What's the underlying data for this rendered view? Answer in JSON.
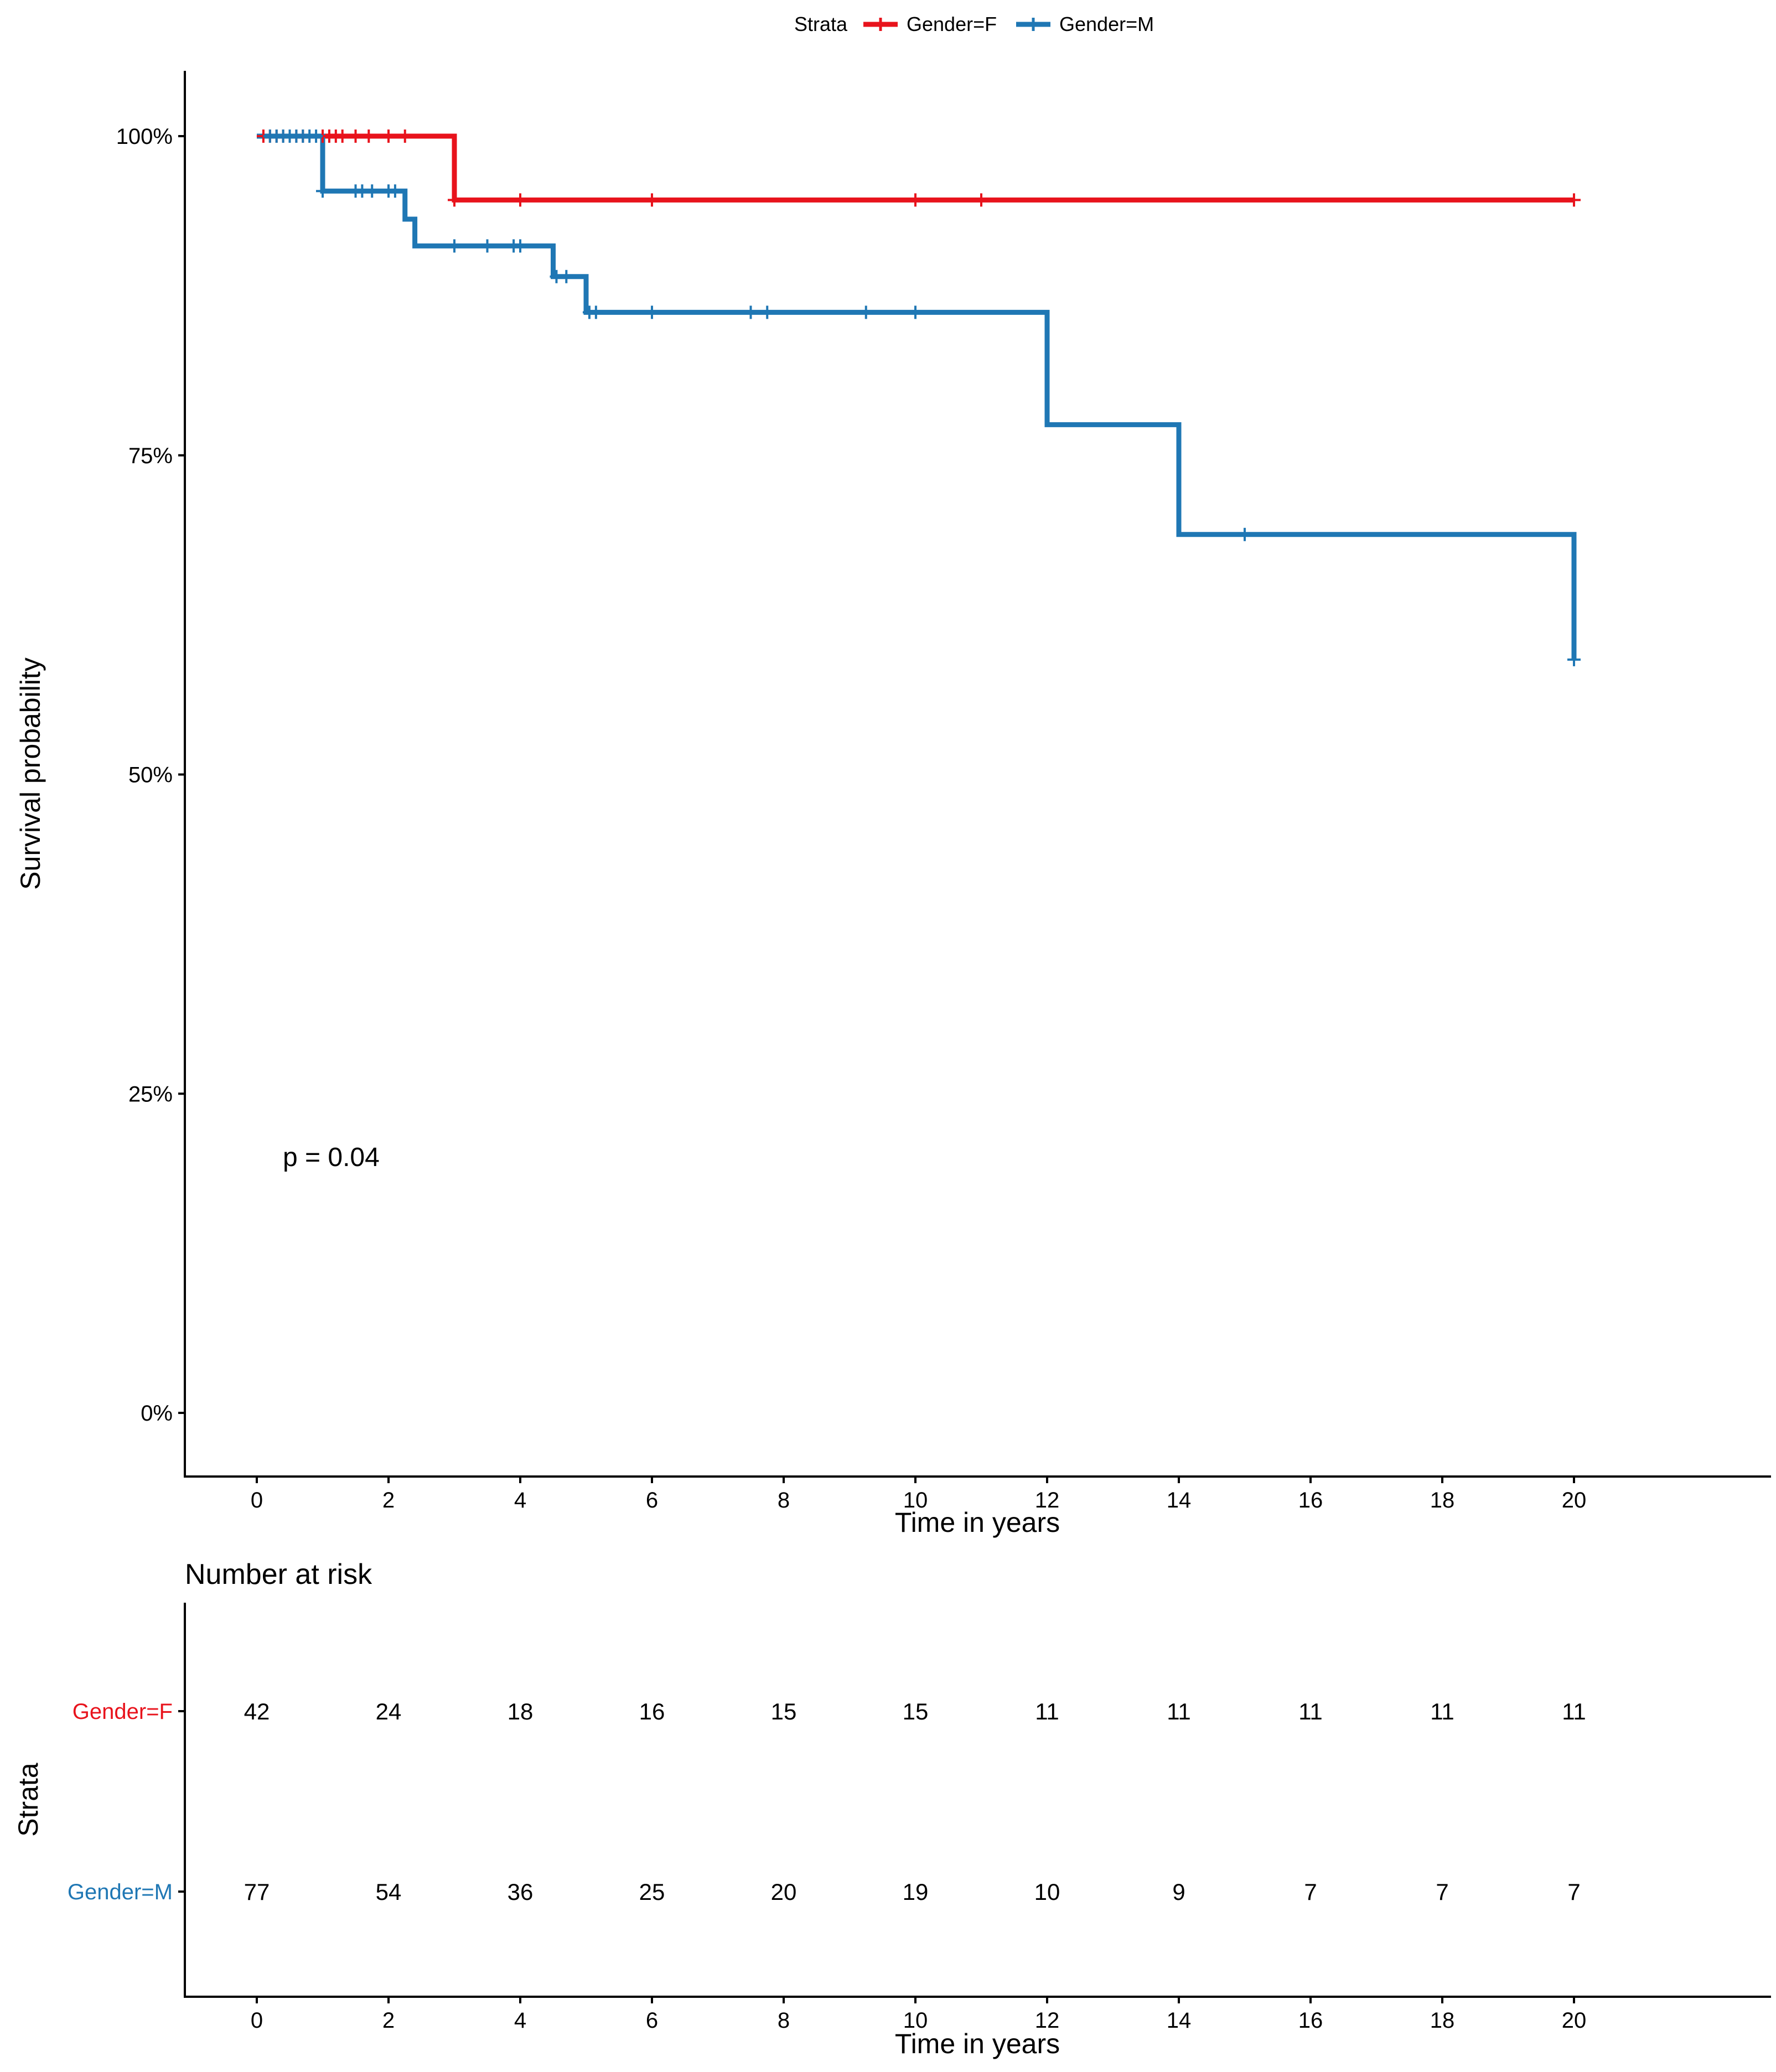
{
  "chart_data": {
    "type": "line",
    "subtype": "kaplan-meier",
    "xlabel": "Time in years",
    "ylabel": "Survival probability",
    "xlim": [
      -1.1,
      23.1
    ],
    "ylim": [
      -0.05,
      1.05
    ],
    "x_ticks": [
      0,
      2,
      4,
      6,
      8,
      10,
      12,
      14,
      16,
      18,
      20
    ],
    "y_ticks": [
      {
        "value": 0,
        "label": "0%"
      },
      {
        "value": 0.25,
        "label": "25%"
      },
      {
        "value": 0.5,
        "label": "50%"
      },
      {
        "value": 0.75,
        "label": "75%"
      },
      {
        "value": 1.0,
        "label": "100%"
      }
    ],
    "legend": {
      "title": "Strata",
      "position": "top"
    },
    "annotation": {
      "text": "p = 0.04",
      "x": 0.4,
      "y": 0.2
    },
    "series": [
      {
        "name": "Gender=F",
        "color": "#e8131c",
        "steps": [
          [
            0,
            1.0
          ],
          [
            3,
            0.95
          ],
          [
            20,
            0.95
          ]
        ],
        "censored": [
          {
            "x": 0.1,
            "y": 1.0
          },
          {
            "x": 0.2,
            "y": 1.0
          },
          {
            "x": 0.3,
            "y": 1.0
          },
          {
            "x": 0.4,
            "y": 1.0
          },
          {
            "x": 0.5,
            "y": 1.0
          },
          {
            "x": 0.6,
            "y": 1.0
          },
          {
            "x": 0.7,
            "y": 1.0
          },
          {
            "x": 1.0,
            "y": 1.0
          },
          {
            "x": 1.1,
            "y": 1.0
          },
          {
            "x": 1.2,
            "y": 1.0
          },
          {
            "x": 1.3,
            "y": 1.0
          },
          {
            "x": 1.5,
            "y": 1.0
          },
          {
            "x": 1.7,
            "y": 1.0
          },
          {
            "x": 2.0,
            "y": 1.0
          },
          {
            "x": 2.25,
            "y": 1.0
          },
          {
            "x": 3.0,
            "y": 0.95
          },
          {
            "x": 4.0,
            "y": 0.95
          },
          {
            "x": 6.0,
            "y": 0.95
          },
          {
            "x": 10.0,
            "y": 0.95
          },
          {
            "x": 11.0,
            "y": 0.95
          },
          {
            "x": 20.0,
            "y": 0.95
          }
        ]
      },
      {
        "name": "Gender=M",
        "color": "#1f77b4",
        "steps": [
          [
            0,
            1.0
          ],
          [
            1,
            0.957
          ],
          [
            2.25,
            0.935
          ],
          [
            2.4,
            0.914
          ],
          [
            4.5,
            0.89
          ],
          [
            5.0,
            0.862
          ],
          [
            12,
            0.774
          ],
          [
            14,
            0.688
          ],
          [
            20,
            0.59
          ]
        ],
        "censored": [
          {
            "x": 0.2,
            "y": 1.0
          },
          {
            "x": 0.3,
            "y": 1.0
          },
          {
            "x": 0.4,
            "y": 1.0
          },
          {
            "x": 0.5,
            "y": 1.0
          },
          {
            "x": 0.6,
            "y": 1.0
          },
          {
            "x": 0.7,
            "y": 1.0
          },
          {
            "x": 0.8,
            "y": 1.0
          },
          {
            "x": 0.9,
            "y": 1.0
          },
          {
            "x": 1.0,
            "y": 0.957
          },
          {
            "x": 1.5,
            "y": 0.957
          },
          {
            "x": 1.6,
            "y": 0.957
          },
          {
            "x": 1.75,
            "y": 0.957
          },
          {
            "x": 2.0,
            "y": 0.957
          },
          {
            "x": 2.1,
            "y": 0.957
          },
          {
            "x": 3.0,
            "y": 0.914
          },
          {
            "x": 3.5,
            "y": 0.914
          },
          {
            "x": 3.9,
            "y": 0.914
          },
          {
            "x": 4.0,
            "y": 0.914
          },
          {
            "x": 4.55,
            "y": 0.89
          },
          {
            "x": 4.7,
            "y": 0.89
          },
          {
            "x": 5.05,
            "y": 0.862
          },
          {
            "x": 5.15,
            "y": 0.862
          },
          {
            "x": 6.0,
            "y": 0.862
          },
          {
            "x": 7.5,
            "y": 0.862
          },
          {
            "x": 7.75,
            "y": 0.862
          },
          {
            "x": 9.25,
            "y": 0.862
          },
          {
            "x": 10.0,
            "y": 0.862
          },
          {
            "x": 15.0,
            "y": 0.688
          },
          {
            "x": 20.0,
            "y": 0.59
          }
        ]
      }
    ],
    "risk_table": {
      "title": "Number at risk",
      "ylabel": "Strata",
      "xlabel": "Time in years",
      "times": [
        0,
        2,
        4,
        6,
        8,
        10,
        12,
        14,
        16,
        18,
        20
      ],
      "rows": [
        {
          "name": "Gender=F",
          "color": "#e8131c",
          "counts": [
            42,
            24,
            18,
            16,
            15,
            15,
            11,
            11,
            11,
            11,
            11
          ]
        },
        {
          "name": "Gender=M",
          "color": "#1f77b4",
          "counts": [
            77,
            54,
            36,
            25,
            20,
            19,
            10,
            9,
            7,
            7,
            7
          ]
        }
      ]
    }
  }
}
